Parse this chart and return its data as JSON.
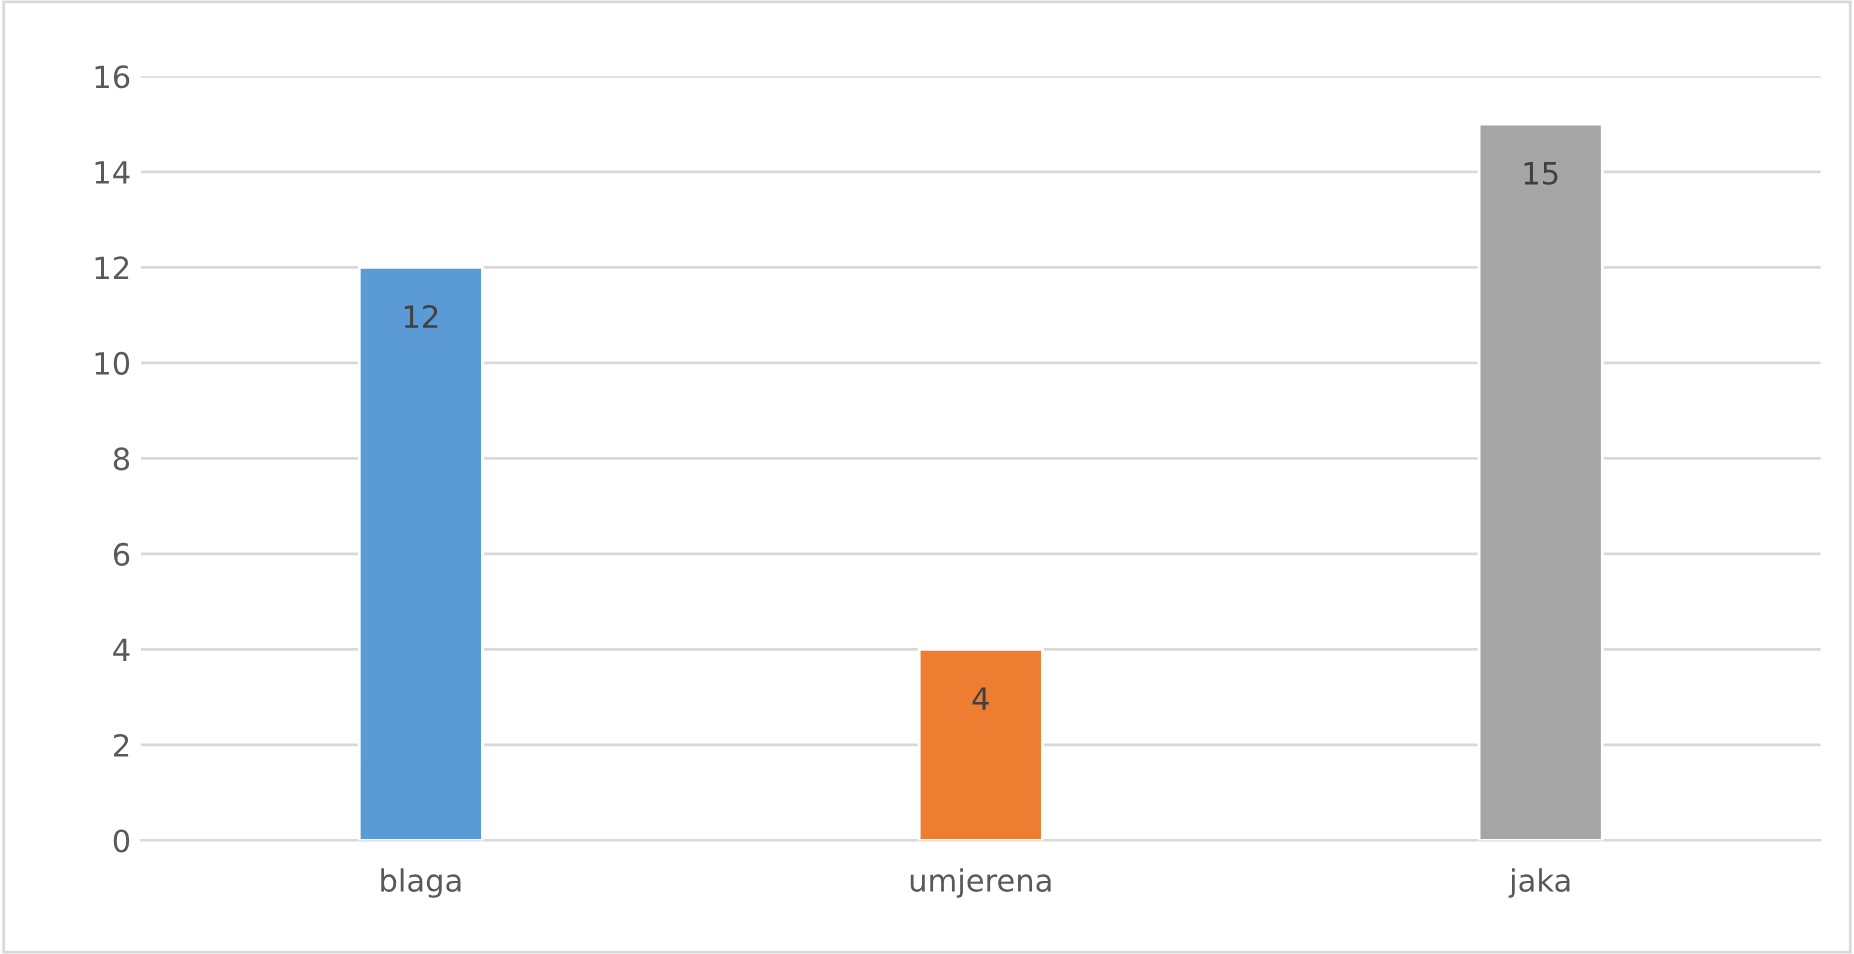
{
  "chart_data": {
    "type": "bar",
    "categories": [
      "blaga",
      "umjerena",
      "jaka"
    ],
    "values": [
      12,
      4,
      15
    ],
    "colors": [
      "#5b9bd5",
      "#ed7d31",
      "#a5a5a5"
    ],
    "ylim": [
      0,
      16
    ],
    "yticks": [
      0,
      2,
      4,
      6,
      8,
      10,
      12,
      14,
      16
    ],
    "grid": "y",
    "data_labels": true
  }
}
